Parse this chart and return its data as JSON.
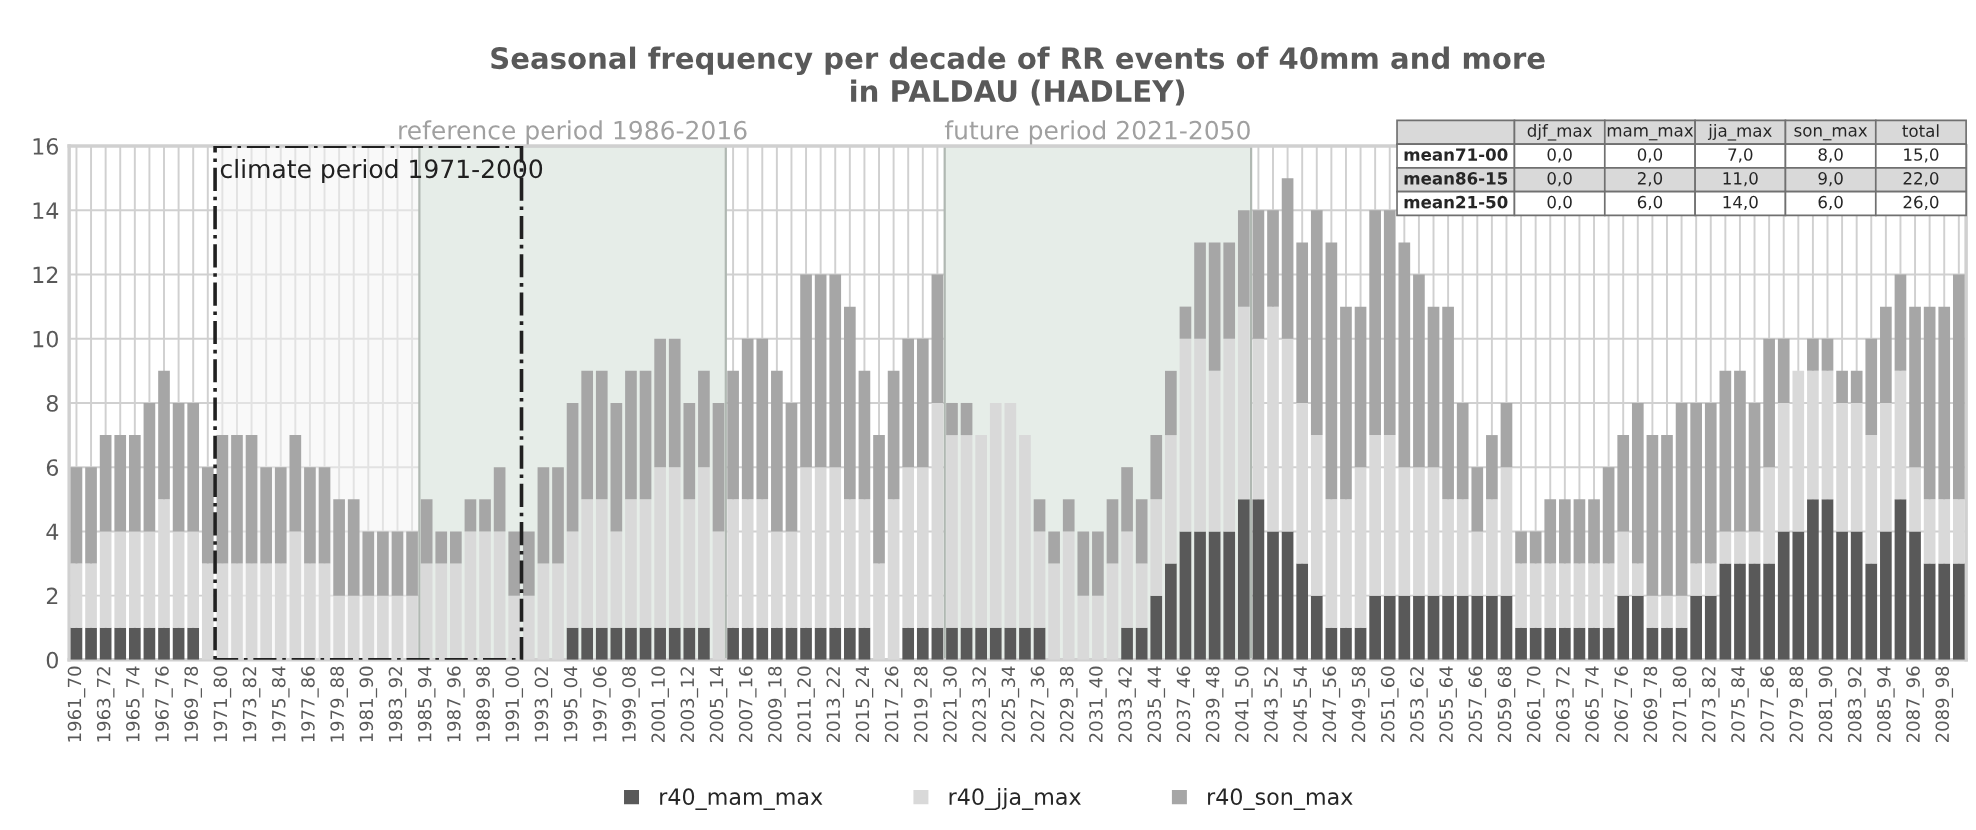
{
  "chart_data": {
    "type": "bar",
    "stacked": true,
    "title": "Seasonal frequency per decade of RR events of 40mm and more\nin PALDAU (HADLEY)",
    "categories": [
      "1961_70",
      null,
      "1963_72",
      null,
      "1965_74",
      null,
      "1967_76",
      null,
      "1969_78",
      null,
      "1971_80",
      null,
      "1973_82",
      null,
      "1975_84",
      null,
      "1977_86",
      null,
      "1979_88",
      null,
      "1981_90",
      null,
      "1983_92",
      null,
      "1985_94",
      null,
      "1987_96",
      null,
      "1989_98",
      null,
      "1991_00",
      null,
      "1993_02",
      null,
      "1995_04",
      null,
      "1997_06",
      null,
      "1999_08",
      null,
      "2001_10",
      null,
      "2003_12",
      null,
      "2005_14",
      null,
      "2007_16",
      null,
      "2009_18",
      null,
      "2011_20",
      null,
      "2013_22",
      null,
      "2015_24",
      null,
      "2017_26",
      null,
      "2019_28",
      null,
      "2021_30",
      null,
      "2023_32",
      null,
      "2025_34",
      null,
      "2027_36",
      null,
      "2029_38",
      null,
      "2031_40",
      null,
      "2033_42",
      null,
      "2035_44",
      null,
      "2037_46",
      null,
      "2039_48",
      null,
      "2041_50",
      null,
      "2043_52",
      null,
      "2045_54",
      null,
      "2047_56",
      null,
      "2049_58",
      null,
      "2051_60",
      null,
      "2053_62",
      null,
      "2055_64",
      null,
      "2057_66",
      null,
      "2059_68",
      null,
      "2061_70",
      null,
      "2063_72",
      null,
      "2065_74",
      null,
      "2067_76",
      null,
      "2069_78",
      null,
      "2071_80",
      null,
      "2073_82",
      null,
      "2075_84",
      null,
      "2077_86",
      null,
      "2079_88",
      null,
      "2081_90",
      null,
      "2083_92",
      null,
      "2085_94",
      null,
      "2087_96",
      null,
      "2089_98",
      null
    ],
    "series": [
      {
        "name": "r40_mam_max",
        "color": "#595959",
        "values": [
          1,
          1,
          1,
          1,
          1,
          1,
          1,
          1,
          1,
          0,
          0,
          0,
          0,
          0,
          0,
          0,
          0,
          0,
          0,
          0,
          0,
          0,
          0,
          0,
          0,
          0,
          0,
          0,
          0,
          0,
          0,
          0,
          0,
          0,
          1,
          1,
          1,
          1,
          1,
          1,
          1,
          1,
          1,
          1,
          0,
          1,
          1,
          1,
          1,
          1,
          1,
          1,
          1,
          1,
          1,
          0,
          0,
          1,
          1,
          1,
          1,
          1,
          1,
          1,
          1,
          1,
          1,
          0,
          0,
          0,
          0,
          0,
          1,
          1,
          2,
          3,
          4,
          4,
          4,
          4,
          5,
          5,
          4,
          4,
          3,
          2,
          1,
          1,
          1,
          2,
          2,
          2,
          2,
          2,
          2,
          2,
          2,
          2,
          2,
          1,
          1,
          1,
          1,
          1,
          1,
          1,
          2,
          2,
          1,
          1,
          1,
          2,
          2,
          3,
          3,
          3,
          3,
          4,
          4,
          5,
          5,
          4,
          4,
          3,
          4,
          5,
          4,
          3,
          3,
          3
        ]
      },
      {
        "name": "r40_jja_max",
        "color": "#d9d9d9",
        "values": [
          2,
          2,
          3,
          3,
          3,
          3,
          4,
          3,
          3,
          3,
          3,
          3,
          3,
          3,
          3,
          4,
          3,
          3,
          2,
          2,
          2,
          2,
          2,
          2,
          3,
          3,
          3,
          4,
          4,
          4,
          2,
          2,
          3,
          3,
          3,
          4,
          4,
          3,
          4,
          4,
          5,
          5,
          4,
          5,
          4,
          4,
          4,
          4,
          3,
          3,
          5,
          5,
          5,
          4,
          4,
          3,
          5,
          5,
          5,
          7,
          6,
          6,
          6,
          7,
          7,
          6,
          3,
          3,
          4,
          2,
          2,
          3,
          3,
          2,
          3,
          4,
          6,
          6,
          5,
          6,
          6,
          5,
          7,
          6,
          5,
          5,
          4,
          4,
          5,
          5,
          5,
          4,
          4,
          4,
          3,
          3,
          2,
          3,
          4,
          2,
          2,
          2,
          2,
          2,
          2,
          2,
          2,
          1,
          1,
          1,
          1,
          1,
          1,
          1,
          1,
          1,
          3,
          4,
          5,
          4,
          4,
          4,
          4,
          4,
          4,
          4,
          2,
          2,
          2,
          2
        ]
      },
      {
        "name": "r40_son_max",
        "color": "#a6a6a6",
        "values": [
          3,
          3,
          3,
          3,
          3,
          4,
          4,
          4,
          4,
          3,
          4,
          4,
          4,
          3,
          3,
          3,
          3,
          3,
          3,
          3,
          2,
          2,
          2,
          2,
          2,
          1,
          1,
          1,
          1,
          2,
          2,
          2,
          3,
          3,
          4,
          4,
          4,
          4,
          4,
          4,
          4,
          4,
          3,
          3,
          4,
          4,
          5,
          5,
          5,
          4,
          6,
          6,
          6,
          6,
          4,
          4,
          4,
          4,
          4,
          4,
          1,
          1,
          0,
          0,
          0,
          0,
          1,
          1,
          1,
          2,
          2,
          2,
          2,
          2,
          2,
          2,
          1,
          3,
          4,
          3,
          3,
          4,
          3,
          5,
          5,
          7,
          8,
          6,
          5,
          7,
          7,
          7,
          6,
          5,
          6,
          3,
          2,
          2,
          2,
          1,
          1,
          2,
          2,
          2,
          2,
          3,
          3,
          5,
          5,
          5,
          6,
          5,
          5,
          5,
          5,
          4,
          4,
          2,
          0,
          1,
          1,
          1,
          1,
          3,
          3,
          3,
          5,
          6,
          6,
          7
        ]
      }
    ],
    "ylim": [
      0,
      16
    ],
    "yticks": [
      0,
      2,
      4,
      6,
      8,
      10,
      12,
      14,
      16
    ],
    "grid": true,
    "legend": "bottom",
    "bands": [
      {
        "axis": "x",
        "from": "1985_94",
        "to": "2005_14",
        "label": "reference period 1986-2016",
        "color": "#e6ede8"
      },
      {
        "axis": "x",
        "from": "2021_30",
        "to": "2041_50",
        "label": "future period 2021-2050",
        "color": "#e6ede8"
      },
      {
        "axis": "x",
        "from": "1971_80",
        "to": "1991_00",
        "label": "climate period 1971-2000",
        "color": "#f4f4f4"
      }
    ],
    "annotations": [
      "djf_max",
      "mam_max",
      "jja_max",
      "son_max",
      "total",
      "mean71-00",
      "0,0",
      "0,0",
      "7,0",
      "8,0",
      "15,0",
      "mean86-15",
      "0,0",
      "2,0",
      "11,0",
      "9,0",
      "22,0",
      "mean21-50",
      "0,0",
      "6,0",
      "14,0",
      "6,0",
      "26,0"
    ]
  }
}
